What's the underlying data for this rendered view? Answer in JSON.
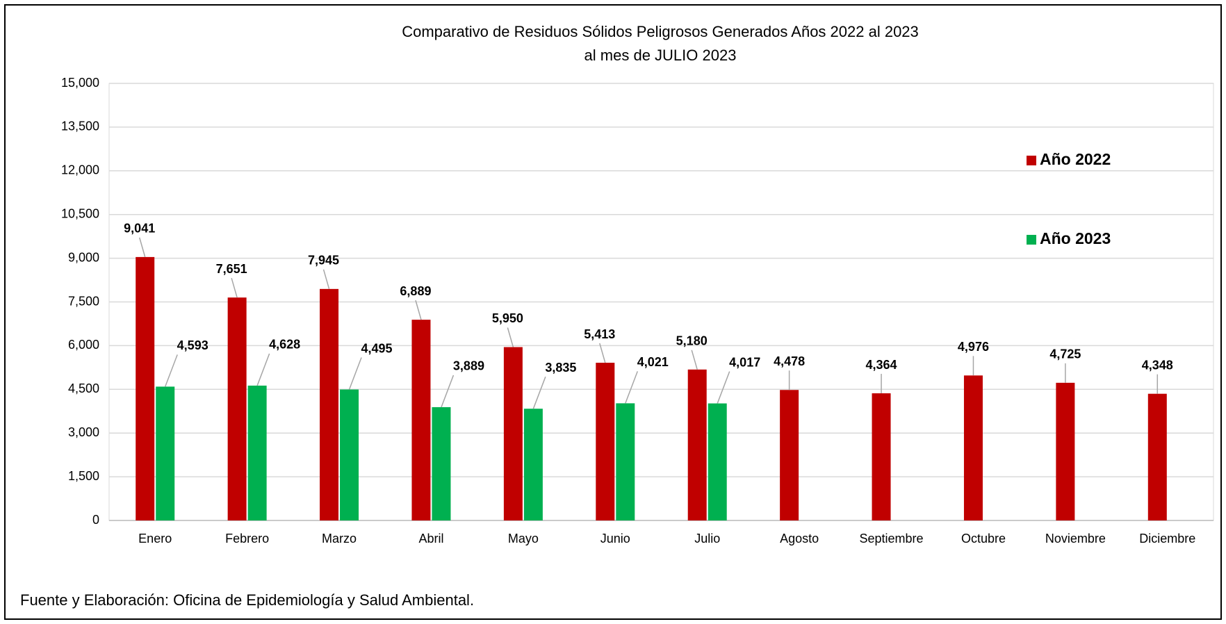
{
  "chart_data": {
    "type": "bar",
    "title": "Comparativo de Residuos Sólidos Peligrosos Generados Años 2022 al 2023",
    "subtitle": "al mes de JULIO 2023",
    "categories": [
      "Enero",
      "Febrero",
      "Marzo",
      "Abril",
      "Mayo",
      "Junio",
      "Julio",
      "Agosto",
      "Septiembre",
      "Octubre",
      "Noviembre",
      "Diciembre"
    ],
    "series": [
      {
        "name": "Año 2022",
        "color": "#c00000",
        "values": [
          9041,
          7651,
          7945,
          6889,
          5950,
          5413,
          5180,
          4478,
          4364,
          4976,
          4725,
          4348
        ],
        "value_labels": [
          "9,041",
          "7,651",
          "7,945",
          "6,889",
          "5,950",
          "5,413",
          "5,180",
          "4,478",
          "4,364",
          "4,976",
          "4,725",
          "4,348"
        ]
      },
      {
        "name": "Año 2023",
        "color": "#00b050",
        "values": [
          4593,
          4628,
          4495,
          3889,
          3835,
          4021,
          4017,
          null,
          null,
          null,
          null,
          null
        ],
        "value_labels": [
          "4,593",
          "4,628",
          "4,495",
          "3,889",
          "3,835",
          "4,021",
          "4,017",
          null,
          null,
          null,
          null,
          null
        ]
      }
    ],
    "ylim": [
      0,
      15000
    ],
    "yticks": [
      0,
      {
        "value": 1500,
        "label": "1,500"
      },
      {
        "value": 3000,
        "label": "3,000"
      },
      {
        "value": 4500,
        "label": "4,500"
      },
      {
        "value": 6000,
        "label": "6,000"
      },
      {
        "value": 7500,
        "label": "7,500"
      },
      {
        "value": 9000,
        "label": "9,000"
      },
      {
        "value": 10500,
        "label": "10,500"
      },
      {
        "value": 12000,
        "label": "12,000"
      },
      {
        "value": 13500,
        "label": "13,500"
      },
      {
        "value": 15000,
        "label": "15,000"
      }
    ],
    "grid": true,
    "legend": "right",
    "footer": "Fuente y Elaboración: Oficina de Epidemiología y Salud Ambiental."
  }
}
